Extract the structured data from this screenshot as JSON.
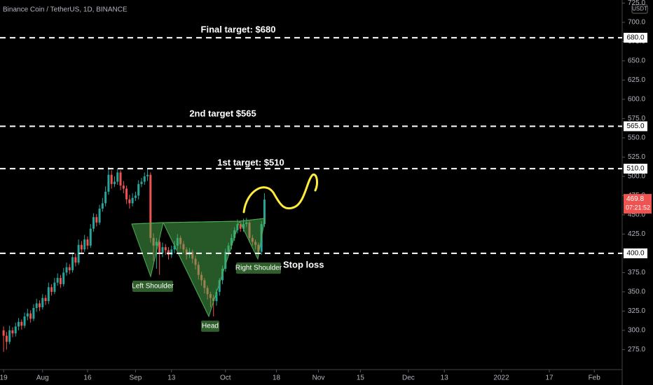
{
  "chart_data": {
    "type": "candlestick",
    "title": "Binance Coin / TetherUS, 1D, BINANCE",
    "currency": "USDT",
    "x": [
      0,
      1,
      2,
      3,
      4,
      5,
      6,
      7,
      8,
      9,
      10,
      11,
      12,
      13,
      14,
      15,
      16,
      17,
      18,
      19,
      20,
      21,
      22,
      23,
      24,
      25,
      26,
      27,
      28,
      29,
      30,
      31,
      32,
      33,
      34,
      35,
      36,
      37,
      38,
      39,
      40,
      41,
      42,
      43,
      44,
      45,
      46,
      47,
      48,
      49,
      50,
      51,
      52,
      53,
      54,
      55,
      56,
      57,
      58,
      59,
      60,
      61,
      62,
      63,
      64,
      65,
      66,
      67,
      68,
      69,
      70,
      71,
      72,
      73,
      74,
      75,
      76,
      77,
      78,
      79,
      80,
      81,
      82,
      83,
      84,
      85,
      86,
      87
    ],
    "open": [
      300,
      293,
      285,
      300,
      296,
      305,
      311,
      306,
      318,
      322,
      315,
      329,
      335,
      330,
      342,
      338,
      356,
      350,
      362,
      368,
      360,
      375,
      382,
      378,
      395,
      388,
      411,
      405,
      418,
      410,
      432,
      447,
      440,
      458,
      465,
      480,
      502,
      490,
      493,
      505,
      488,
      484,
      470,
      465,
      472,
      475,
      490,
      493,
      500,
      502,
      420,
      410,
      415,
      400,
      408,
      404,
      398,
      405,
      410,
      420,
      412,
      405,
      398,
      402,
      393,
      385,
      372,
      365,
      355,
      347,
      342,
      338,
      350,
      365,
      380,
      402,
      410,
      420,
      430,
      438,
      432,
      438,
      440,
      420,
      415,
      411,
      402,
      438
    ],
    "high": [
      305,
      298,
      306,
      304,
      310,
      316,
      314,
      323,
      328,
      326,
      334,
      341,
      339,
      347,
      346,
      362,
      360,
      368,
      374,
      372,
      381,
      388,
      386,
      401,
      400,
      418,
      416,
      424,
      422,
      438,
      452,
      451,
      463,
      472,
      487,
      512,
      508,
      500,
      510,
      508,
      494,
      488,
      476,
      478,
      480,
      495,
      498,
      505,
      510,
      505,
      426,
      420,
      418,
      414,
      412,
      408,
      410,
      416,
      425,
      423,
      416,
      408,
      407,
      405,
      397,
      389,
      376,
      368,
      358,
      350,
      346,
      354,
      368,
      384,
      406,
      414,
      425,
      434,
      444,
      441,
      445,
      446,
      442,
      424,
      418,
      414,
      442,
      478
    ],
    "low": [
      272,
      275,
      282,
      291,
      292,
      300,
      301,
      303,
      313,
      310,
      312,
      324,
      325,
      327,
      333,
      334,
      345,
      347,
      358,
      355,
      357,
      371,
      373,
      375,
      383,
      385,
      400,
      402,
      405,
      407,
      428,
      435,
      437,
      454,
      461,
      476,
      484,
      486,
      489,
      482,
      478,
      464,
      458,
      461,
      468,
      470,
      486,
      489,
      494,
      414,
      390,
      380,
      372,
      395,
      398,
      392,
      394,
      400,
      405,
      406,
      400,
      392,
      394,
      387,
      379,
      366,
      358,
      348,
      340,
      330,
      318,
      332,
      345,
      360,
      376,
      398,
      405,
      416,
      426,
      428,
      428,
      434,
      414,
      410,
      405,
      396,
      398,
      434
    ],
    "close": [
      293,
      285,
      300,
      296,
      305,
      311,
      306,
      318,
      322,
      315,
      329,
      335,
      330,
      342,
      338,
      356,
      350,
      362,
      368,
      360,
      375,
      382,
      378,
      395,
      388,
      411,
      405,
      418,
      410,
      432,
      447,
      440,
      458,
      465,
      480,
      502,
      490,
      493,
      505,
      488,
      484,
      470,
      465,
      472,
      475,
      490,
      493,
      500,
      502,
      420,
      410,
      415,
      400,
      408,
      404,
      398,
      405,
      410,
      420,
      412,
      405,
      398,
      402,
      393,
      385,
      372,
      365,
      355,
      347,
      342,
      338,
      350,
      365,
      380,
      402,
      410,
      420,
      430,
      438,
      432,
      438,
      440,
      420,
      415,
      411,
      402,
      438,
      469.8
    ],
    "up_color": "#26a69a",
    "down_color": "#ef5350",
    "xlim": [
      -1.2,
      206.3
    ],
    "ylim": [
      249,
      729
    ],
    "xticks": [
      {
        "value": 0,
        "label": "19"
      },
      {
        "value": 13,
        "label": "Aug"
      },
      {
        "value": 28,
        "label": "16"
      },
      {
        "value": 44,
        "label": "Sep"
      },
      {
        "value": 56,
        "label": "13"
      },
      {
        "value": 74,
        "label": "Oct"
      },
      {
        "value": 91,
        "label": "18"
      },
      {
        "value": 105,
        "label": "Nov"
      },
      {
        "value": 119,
        "label": "15"
      },
      {
        "value": 135,
        "label": "Dec"
      },
      {
        "value": 147,
        "label": "13"
      },
      {
        "value": 166,
        "label": "2022"
      },
      {
        "value": 182,
        "label": "17"
      },
      {
        "value": 197,
        "label": "Feb"
      }
    ],
    "yticks": [
      {
        "value": 275,
        "label": "275.0"
      },
      {
        "value": 300,
        "label": "300.0"
      },
      {
        "value": 325,
        "label": "325.0"
      },
      {
        "value": 350,
        "label": "350.0"
      },
      {
        "value": 375,
        "label": "375.0"
      },
      {
        "value": 400,
        "label": "400.0"
      },
      {
        "value": 425,
        "label": "425.0"
      },
      {
        "value": 450,
        "label": "450.0"
      },
      {
        "value": 475,
        "label": "475.0"
      },
      {
        "value": 500,
        "label": "500.0"
      },
      {
        "value": 525,
        "label": "525.0"
      },
      {
        "value": 550,
        "label": "550.0"
      },
      {
        "value": 575,
        "label": "575.0"
      },
      {
        "value": 600,
        "label": "600.0"
      },
      {
        "value": 625,
        "label": "625.0"
      },
      {
        "value": 650,
        "label": "650.0"
      },
      {
        "value": 675,
        "label": "675.0"
      },
      {
        "value": 700,
        "label": "700.0"
      },
      {
        "value": 725,
        "label": "725.0"
      }
    ],
    "levels": [
      {
        "value": 680,
        "label": "680.0"
      },
      {
        "value": 565,
        "label": "565.0"
      },
      {
        "value": 510,
        "label": "510.0"
      },
      {
        "value": 400,
        "label": "400.0"
      }
    ],
    "current_price": {
      "value": 469.8,
      "label": "469.8",
      "countdown": "07:21:52"
    },
    "annotations": {
      "final_target": "Final target: $680",
      "second_target": "2nd target $565",
      "first_target": "1st target: $510",
      "stop_loss": "Stop loss",
      "left_shoulder": "Left Shoulder",
      "head": "Head",
      "right_shoulder": "Right Shoulder"
    }
  }
}
